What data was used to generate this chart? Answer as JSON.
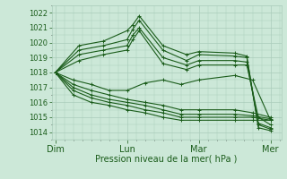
{
  "xlabel": "Pression niveau de la mer( hPa )",
  "bg_color": "#cce8d8",
  "grid_color": "#aaccbb",
  "line_color": "#1a5c1a",
  "ylim": [
    1013.5,
    1022.5
  ],
  "yticks": [
    1014,
    1015,
    1016,
    1017,
    1018,
    1019,
    1020,
    1021,
    1022
  ],
  "xlim": [
    -0.05,
    3.15
  ],
  "day_ticks": [
    0,
    1,
    2,
    3
  ],
  "day_labels": [
    "Dim",
    "Lun",
    "Mar",
    "Mer"
  ],
  "series": [
    {
      "x": [
        0.0,
        0.33,
        0.67,
        1.0,
        1.08,
        1.17,
        1.5,
        1.83,
        2.0,
        2.5,
        2.67,
        2.83,
        3.0
      ],
      "y": [
        1018.0,
        1019.5,
        1019.8,
        1020.2,
        1020.9,
        1021.5,
        1019.5,
        1018.8,
        1019.2,
        1019.1,
        1019.0,
        1014.5,
        1014.2
      ]
    },
    {
      "x": [
        0.0,
        0.33,
        0.67,
        1.0,
        1.08,
        1.17,
        1.5,
        1.83,
        2.0,
        2.5,
        2.67,
        2.83,
        3.0
      ],
      "y": [
        1018.0,
        1019.8,
        1020.1,
        1020.8,
        1021.2,
        1021.8,
        1019.8,
        1019.2,
        1019.4,
        1019.3,
        1019.1,
        1014.3,
        1014.1
      ]
    },
    {
      "x": [
        0.0,
        0.33,
        0.67,
        1.0,
        1.08,
        1.17,
        1.5,
        1.83,
        2.0,
        2.5,
        2.67,
        2.83,
        3.0
      ],
      "y": [
        1018.0,
        1019.2,
        1019.5,
        1019.8,
        1020.5,
        1021.0,
        1019.0,
        1018.5,
        1018.8,
        1018.8,
        1018.7,
        1014.6,
        1014.3
      ]
    },
    {
      "x": [
        0.0,
        0.33,
        0.67,
        1.0,
        1.08,
        1.17,
        1.5,
        1.83,
        2.0,
        2.5,
        2.67,
        2.83,
        3.0
      ],
      "y": [
        1018.0,
        1018.8,
        1019.2,
        1019.5,
        1020.2,
        1020.8,
        1018.6,
        1018.2,
        1018.5,
        1018.5,
        1018.5,
        1015.0,
        1014.5
      ]
    },
    {
      "x": [
        0.0,
        0.25,
        0.5,
        0.75,
        1.0,
        1.25,
        1.5,
        1.75,
        2.0,
        2.5,
        2.75,
        3.0
      ],
      "y": [
        1018.0,
        1017.5,
        1017.2,
        1016.8,
        1016.8,
        1017.3,
        1017.5,
        1017.2,
        1017.5,
        1017.8,
        1017.5,
        1014.8
      ]
    },
    {
      "x": [
        0.0,
        0.25,
        0.5,
        0.75,
        1.0,
        1.25,
        1.5,
        1.75,
        2.0,
        2.5,
        2.75,
        3.0
      ],
      "y": [
        1018.0,
        1017.2,
        1016.8,
        1016.5,
        1016.2,
        1016.0,
        1015.8,
        1015.5,
        1015.5,
        1015.5,
        1015.3,
        1015.0
      ]
    },
    {
      "x": [
        0.0,
        0.25,
        0.5,
        0.75,
        1.0,
        1.25,
        1.5,
        1.75,
        2.0,
        2.5,
        2.75,
        3.0
      ],
      "y": [
        1018.0,
        1017.0,
        1016.5,
        1016.2,
        1016.0,
        1015.8,
        1015.5,
        1015.2,
        1015.2,
        1015.2,
        1015.1,
        1014.9
      ]
    },
    {
      "x": [
        0.0,
        0.25,
        0.5,
        0.75,
        1.0,
        1.25,
        1.5,
        1.75,
        2.0,
        2.5,
        2.75,
        3.0
      ],
      "y": [
        1018.0,
        1016.8,
        1016.3,
        1016.0,
        1015.8,
        1015.5,
        1015.3,
        1015.0,
        1015.0,
        1015.0,
        1015.0,
        1014.8
      ]
    },
    {
      "x": [
        0.0,
        0.25,
        0.5,
        0.75,
        1.0,
        1.25,
        1.5,
        1.75,
        2.0,
        2.5,
        2.75,
        3.0
      ],
      "y": [
        1018.0,
        1016.5,
        1016.0,
        1015.8,
        1015.5,
        1015.3,
        1015.0,
        1014.8,
        1014.8,
        1014.8,
        1014.8,
        1014.8
      ]
    }
  ],
  "marker": "+",
  "markersize": 3,
  "linewidth": 0.8
}
